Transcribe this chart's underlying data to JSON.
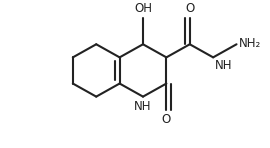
{
  "background": "#ffffff",
  "line_color": "#222222",
  "line_width": 1.5,
  "font_size": 8.5,
  "figsize": [
    2.7,
    1.48
  ],
  "dpi": 100,
  "labels": {
    "OH": "OH",
    "O_amide": "O",
    "NH_ring": "NH",
    "O_lactam": "O",
    "NH_hyd": "NH",
    "NH2": "NH₂"
  }
}
